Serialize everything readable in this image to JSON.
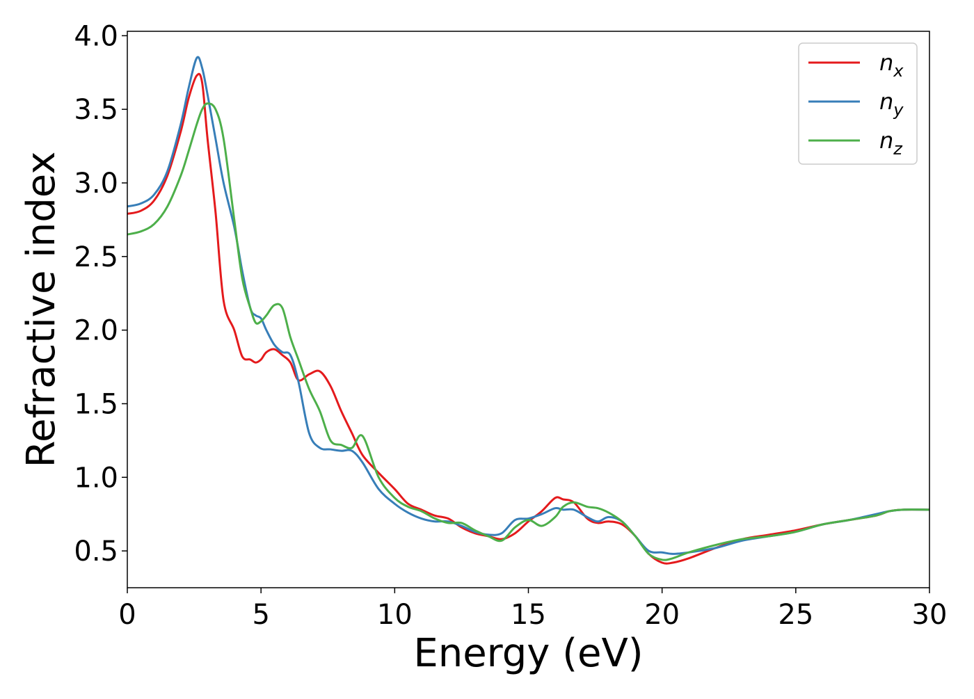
{
  "chart_data": {
    "type": "line",
    "title": "",
    "xlabel": "Energy (eV)",
    "ylabel": "Refractive index",
    "xlim": [
      0,
      30
    ],
    "ylim": [
      0.25,
      4.03
    ],
    "xticks": [
      0,
      5,
      10,
      15,
      20,
      25,
      30
    ],
    "yticks": [
      0.5,
      1.0,
      1.5,
      2.0,
      2.5,
      3.0,
      3.5,
      4.0
    ],
    "xtick_labels": [
      "0",
      "5",
      "10",
      "15",
      "20",
      "25",
      "30"
    ],
    "ytick_labels": [
      "0.5",
      "1.0",
      "1.5",
      "2.0",
      "2.5",
      "3.0",
      "3.5",
      "4.0"
    ],
    "grid": false,
    "legend_position": "top-right",
    "series": [
      {
        "name": "n_x",
        "legend_base": "n",
        "legend_sub": "x",
        "color": "#e41a1c",
        "x": [
          0,
          0.5,
          1.0,
          1.5,
          2.0,
          2.3,
          2.6,
          2.8,
          3.0,
          3.3,
          3.6,
          4.0,
          4.3,
          4.6,
          4.8,
          5.0,
          5.2,
          5.5,
          5.8,
          6.1,
          6.4,
          6.8,
          7.2,
          7.6,
          8.0,
          8.4,
          8.8,
          9.4,
          10.0,
          10.5,
          11.0,
          11.5,
          12.0,
          12.5,
          13.0,
          13.5,
          14.0,
          14.5,
          15.0,
          15.5,
          16.0,
          16.3,
          16.7,
          17.2,
          17.6,
          18.0,
          18.5,
          19.0,
          19.5,
          20.0,
          20.4,
          21.0,
          22.0,
          23.0,
          24.0,
          25.0,
          26.0,
          27.0,
          28.0,
          28.5,
          29.0,
          30.0
        ],
        "y": [
          2.79,
          2.81,
          2.88,
          3.05,
          3.35,
          3.58,
          3.73,
          3.68,
          3.3,
          2.8,
          2.2,
          2.0,
          1.82,
          1.8,
          1.78,
          1.8,
          1.85,
          1.87,
          1.83,
          1.78,
          1.66,
          1.7,
          1.72,
          1.62,
          1.45,
          1.3,
          1.15,
          1.03,
          0.92,
          0.82,
          0.78,
          0.74,
          0.72,
          0.66,
          0.62,
          0.6,
          0.58,
          0.62,
          0.7,
          0.77,
          0.86,
          0.85,
          0.83,
          0.72,
          0.69,
          0.7,
          0.68,
          0.6,
          0.48,
          0.42,
          0.42,
          0.45,
          0.52,
          0.58,
          0.61,
          0.64,
          0.68,
          0.71,
          0.74,
          0.77,
          0.78,
          0.78
        ]
      },
      {
        "name": "n_y",
        "legend_base": "n",
        "legend_sub": "y",
        "color": "#377eb8",
        "x": [
          0,
          0.5,
          1.0,
          1.5,
          2.0,
          2.3,
          2.6,
          2.8,
          3.0,
          3.3,
          3.6,
          4.0,
          4.3,
          4.6,
          4.8,
          5.0,
          5.2,
          5.5,
          5.8,
          6.1,
          6.4,
          6.8,
          7.2,
          7.6,
          8.0,
          8.4,
          8.8,
          9.4,
          10.0,
          10.5,
          11.0,
          11.5,
          12.0,
          12.5,
          13.0,
          13.5,
          14.0,
          14.5,
          15.0,
          15.5,
          16.0,
          16.3,
          16.7,
          17.2,
          17.6,
          18.0,
          18.5,
          19.0,
          19.5,
          20.0,
          20.4,
          21.0,
          22.0,
          23.0,
          24.0,
          25.0,
          26.0,
          27.0,
          28.0,
          28.5,
          29.0,
          30.0
        ],
        "y": [
          2.84,
          2.86,
          2.92,
          3.08,
          3.4,
          3.65,
          3.85,
          3.78,
          3.6,
          3.3,
          3.0,
          2.7,
          2.4,
          2.15,
          2.1,
          2.08,
          2.0,
          1.9,
          1.85,
          1.83,
          1.65,
          1.3,
          1.2,
          1.19,
          1.18,
          1.18,
          1.1,
          0.92,
          0.82,
          0.76,
          0.72,
          0.7,
          0.7,
          0.67,
          0.63,
          0.61,
          0.62,
          0.71,
          0.72,
          0.75,
          0.79,
          0.78,
          0.78,
          0.73,
          0.7,
          0.73,
          0.7,
          0.6,
          0.5,
          0.49,
          0.48,
          0.49,
          0.52,
          0.57,
          0.6,
          0.63,
          0.68,
          0.71,
          0.75,
          0.77,
          0.78,
          0.78
        ]
      },
      {
        "name": "n_z",
        "legend_base": "n",
        "legend_sub": "z",
        "color": "#4daf4a",
        "x": [
          0,
          0.5,
          1.0,
          1.5,
          2.0,
          2.3,
          2.6,
          2.8,
          3.0,
          3.3,
          3.6,
          4.0,
          4.3,
          4.6,
          4.8,
          5.0,
          5.2,
          5.5,
          5.8,
          6.1,
          6.4,
          6.8,
          7.2,
          7.6,
          8.0,
          8.4,
          8.8,
          9.4,
          10.0,
          10.5,
          11.0,
          11.5,
          12.0,
          12.5,
          13.0,
          13.5,
          14.0,
          14.5,
          15.0,
          15.5,
          16.0,
          16.3,
          16.7,
          17.2,
          17.6,
          18.0,
          18.5,
          19.0,
          19.5,
          20.0,
          20.4,
          21.0,
          22.0,
          23.0,
          24.0,
          25.0,
          26.0,
          27.0,
          28.0,
          28.5,
          29.0,
          30.0
        ],
        "y": [
          2.65,
          2.67,
          2.72,
          2.84,
          3.05,
          3.22,
          3.4,
          3.5,
          3.54,
          3.5,
          3.3,
          2.75,
          2.35,
          2.15,
          2.05,
          2.06,
          2.1,
          2.17,
          2.15,
          1.95,
          1.8,
          1.6,
          1.45,
          1.25,
          1.22,
          1.2,
          1.28,
          1.0,
          0.86,
          0.8,
          0.77,
          0.72,
          0.69,
          0.69,
          0.64,
          0.6,
          0.57,
          0.66,
          0.71,
          0.67,
          0.73,
          0.8,
          0.83,
          0.8,
          0.79,
          0.76,
          0.7,
          0.6,
          0.48,
          0.44,
          0.45,
          0.49,
          0.54,
          0.58,
          0.6,
          0.63,
          0.68,
          0.71,
          0.74,
          0.77,
          0.78,
          0.78
        ]
      }
    ]
  }
}
